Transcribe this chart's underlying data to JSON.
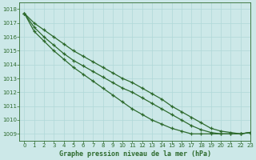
{
  "title": "Graphe pression niveau de la mer (hPa)",
  "xlim": [
    -0.5,
    23
  ],
  "ylim": [
    1008.5,
    1018.5
  ],
  "xticks": [
    0,
    1,
    2,
    3,
    4,
    5,
    6,
    7,
    8,
    9,
    10,
    11,
    12,
    13,
    14,
    15,
    16,
    17,
    18,
    19,
    20,
    21,
    22,
    23
  ],
  "yticks": [
    1009,
    1010,
    1011,
    1012,
    1013,
    1014,
    1015,
    1016,
    1017,
    1018
  ],
  "bg_color": "#cce8e8",
  "grid_color": "#b0d8d8",
  "line_color": "#2d6a2d",
  "lines": [
    [
      1017.7,
      1017.0,
      1016.5,
      1016.0,
      1015.5,
      1015.0,
      1014.6,
      1014.2,
      1013.8,
      1013.4,
      1013.0,
      1012.7,
      1012.3,
      1011.9,
      1011.5,
      1011.0,
      1010.6,
      1010.2,
      1009.8,
      1009.4,
      1009.2,
      1009.1,
      1009.0,
      1009.1
    ],
    [
      1017.7,
      1016.7,
      1016.0,
      1015.4,
      1014.8,
      1014.3,
      1013.9,
      1013.5,
      1013.1,
      1012.7,
      1012.3,
      1012.0,
      1011.6,
      1011.2,
      1010.8,
      1010.4,
      1010.0,
      1009.6,
      1009.3,
      1009.1,
      1009.0,
      1009.0,
      1009.0,
      1009.1
    ],
    [
      1017.7,
      1016.4,
      1015.7,
      1015.0,
      1014.4,
      1013.8,
      1013.3,
      1012.8,
      1012.3,
      1011.8,
      1011.3,
      1010.8,
      1010.4,
      1010.0,
      1009.7,
      1009.4,
      1009.2,
      1009.0,
      1009.0,
      1009.0,
      1009.0,
      1009.0,
      1009.0,
      1009.1
    ]
  ],
  "figsize": [
    3.2,
    2.0
  ],
  "dpi": 100,
  "tick_fontsize": 5,
  "label_fontsize": 6,
  "linewidth": 0.9,
  "markersize": 2.5,
  "markeredgewidth": 0.9
}
